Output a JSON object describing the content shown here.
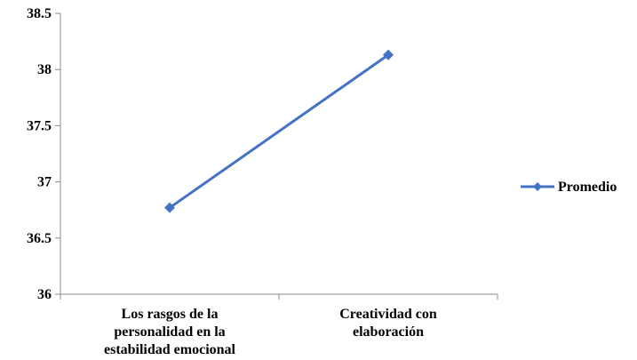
{
  "chart_data": {
    "type": "line",
    "categories": [
      [
        "Los rasgos de la",
        "personalidad en la",
        "estabilidad emocional"
      ],
      [
        "Creatividad con",
        "elaboración"
      ]
    ],
    "series": [
      {
        "name": "Promedio",
        "values": [
          36.77,
          38.13
        ],
        "color": "#4472C4",
        "marker": "diamond"
      }
    ],
    "yticks": [
      "36",
      "36.5",
      "37",
      "37.5",
      "38",
      "38.5"
    ],
    "ylim": [
      36,
      38.5
    ],
    "grid": false,
    "legend": "right",
    "title": "",
    "xlabel": "",
    "ylabel": ""
  }
}
